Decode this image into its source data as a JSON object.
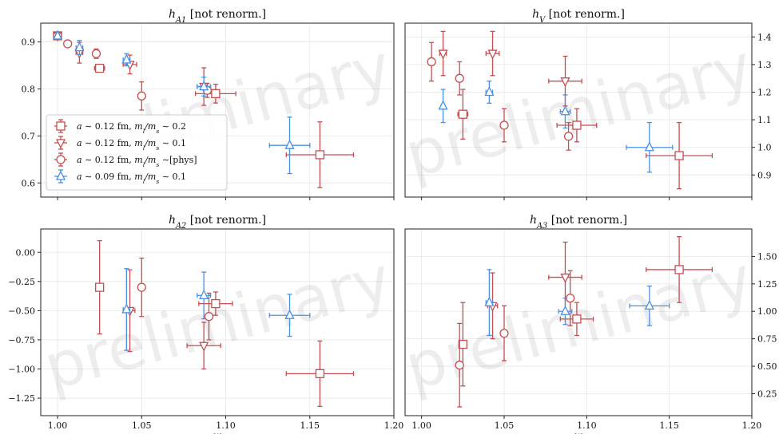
{
  "colors": {
    "red": "#c44e52",
    "blue": "#4a90e2",
    "grid": "#e6e6e6",
    "axis": "#222222"
  },
  "watermark": "preliminary",
  "xlabel": "w",
  "legend": {
    "entries": [
      {
        "series": "a012_02",
        "text": "a ∼ 0.12 fm, m_l/m_s ∼ 0.2"
      },
      {
        "series": "a012_01",
        "text": "a ∼ 0.12 fm, m_l/m_s ∼ 0.1"
      },
      {
        "series": "a012_phys",
        "text": "a ∼ 0.12 fm, m_l/m_s ∼[phys]"
      },
      {
        "series": "a009_01",
        "text": "a ∼ 0.09 fm, m_l/m_s ∼ 0.1"
      }
    ]
  },
  "chart_data": [
    {
      "type": "scatter",
      "title": "h_A1 [not renorm.]",
      "xlabel": "",
      "xlim": [
        0.99,
        1.2
      ],
      "ylim": [
        0.57,
        0.94
      ],
      "xticks": [],
      "yticks": [
        0.6,
        0.7,
        0.8,
        0.9
      ],
      "ytick_labels": [
        "0.6",
        "0.7",
        "0.8",
        "0.9"
      ],
      "ytick_side": "left",
      "grid": true,
      "series": [
        {
          "key": "a012_02",
          "marker": "square",
          "color": "red",
          "points": [
            {
              "x": 1.0,
              "y": 0.913,
              "xerr": 0.002,
              "yerr": 0.006
            },
            {
              "x": 1.025,
              "y": 0.844,
              "xerr": 0.003,
              "yerr": 0.008
            },
            {
              "x": 1.094,
              "y": 0.79,
              "xerr": 0.012,
              "yerr": 0.02
            },
            {
              "x": 1.156,
              "y": 0.66,
              "xerr": 0.02,
              "yerr": 0.07
            }
          ]
        },
        {
          "key": "a012_01",
          "marker": "triangle-down",
          "color": "red",
          "points": [
            {
              "x": 1.0,
              "y": 0.913,
              "xerr": 0.001,
              "yerr": 0.007
            },
            {
              "x": 1.013,
              "y": 0.877,
              "xerr": 0.002,
              "yerr": 0.022
            },
            {
              "x": 1.043,
              "y": 0.852,
              "xerr": 0.004,
              "yerr": 0.02
            },
            {
              "x": 1.087,
              "y": 0.805,
              "xerr": 0.004,
              "yerr": 0.04
            }
          ]
        },
        {
          "key": "a012_phys",
          "marker": "circle",
          "color": "red",
          "points": [
            {
              "x": 1.0,
              "y": 0.913,
              "xerr": 0.001,
              "yerr": 0.006
            },
            {
              "x": 1.006,
              "y": 0.896,
              "xerr": 0.001,
              "yerr": 0.005
            },
            {
              "x": 1.023,
              "y": 0.875,
              "xerr": 0.001,
              "yerr": 0.01
            },
            {
              "x": 1.05,
              "y": 0.785,
              "xerr": 0.001,
              "yerr": 0.03
            },
            {
              "x": 1.089,
              "y": 0.797,
              "xerr": 0.001,
              "yerr": 0.015
            }
          ]
        },
        {
          "key": "a009_01",
          "marker": "triangle-up",
          "color": "blue",
          "points": [
            {
              "x": 1.0,
              "y": 0.913,
              "xerr": 0.001,
              "yerr": 0.006
            },
            {
              "x": 1.013,
              "y": 0.888,
              "xerr": 0.002,
              "yerr": 0.015
            },
            {
              "x": 1.041,
              "y": 0.862,
              "xerr": 0.002,
              "yerr": 0.013
            },
            {
              "x": 1.087,
              "y": 0.805,
              "xerr": 0.004,
              "yerr": 0.02
            },
            {
              "x": 1.138,
              "y": 0.68,
              "xerr": 0.012,
              "yerr": 0.06
            }
          ]
        }
      ]
    },
    {
      "type": "scatter",
      "title": "h_V [not renorm.]",
      "xlabel": "",
      "xlim": [
        0.99,
        1.2
      ],
      "ylim": [
        0.82,
        1.45
      ],
      "xticks": [],
      "yticks": [
        0.9,
        1.0,
        1.1,
        1.2,
        1.3,
        1.4
      ],
      "ytick_labels": [
        "0.9",
        "1.0",
        "1.1",
        "1.2",
        "1.3",
        "1.4"
      ],
      "ytick_side": "right",
      "grid": true,
      "series": [
        {
          "key": "a012_02",
          "marker": "square",
          "color": "red",
          "points": [
            {
              "x": 1.025,
              "y": 1.12,
              "xerr": 0.003,
              "yerr": 0.09
            },
            {
              "x": 1.094,
              "y": 1.08,
              "xerr": 0.012,
              "yerr": 0.06
            },
            {
              "x": 1.156,
              "y": 0.97,
              "xerr": 0.02,
              "yerr": 0.12
            }
          ]
        },
        {
          "key": "a012_01",
          "marker": "triangle-down",
          "color": "red",
          "points": [
            {
              "x": 1.013,
              "y": 1.34,
              "xerr": 0.002,
              "yerr": 0.08
            },
            {
              "x": 1.043,
              "y": 1.34,
              "xerr": 0.004,
              "yerr": 0.08
            },
            {
              "x": 1.087,
              "y": 1.24,
              "xerr": 0.01,
              "yerr": 0.09
            }
          ]
        },
        {
          "key": "a012_phys",
          "marker": "circle",
          "color": "red",
          "points": [
            {
              "x": 1.006,
              "y": 1.31,
              "xerr": 0.001,
              "yerr": 0.07
            },
            {
              "x": 1.023,
              "y": 1.25,
              "xerr": 0.001,
              "yerr": 0.06
            },
            {
              "x": 1.05,
              "y": 1.08,
              "xerr": 0.001,
              "yerr": 0.06
            },
            {
              "x": 1.089,
              "y": 1.04,
              "xerr": 0.001,
              "yerr": 0.05
            }
          ]
        },
        {
          "key": "a009_01",
          "marker": "triangle-up",
          "color": "blue",
          "points": [
            {
              "x": 1.013,
              "y": 1.15,
              "xerr": 0.001,
              "yerr": 0.06
            },
            {
              "x": 1.041,
              "y": 1.2,
              "xerr": 0.002,
              "yerr": 0.04
            },
            {
              "x": 1.087,
              "y": 1.13,
              "xerr": 0.003,
              "yerr": 0.06
            },
            {
              "x": 1.138,
              "y": 1.0,
              "xerr": 0.014,
              "yerr": 0.09
            }
          ]
        }
      ]
    },
    {
      "type": "scatter",
      "title": "h_A2 [not renorm.]",
      "xlabel": "w",
      "xlim": [
        0.99,
        1.2
      ],
      "ylim": [
        -1.4,
        0.2
      ],
      "xticks": [
        1.0,
        1.05,
        1.1,
        1.15,
        1.2
      ],
      "xtick_labels": [
        "1.00",
        "1.05",
        "1.10",
        "1.15",
        "1.20"
      ],
      "yticks": [
        -1.25,
        -1.0,
        -0.75,
        -0.5,
        -0.25,
        0.0
      ],
      "ytick_labels": [
        "−1.25",
        "−1.00",
        "−0.75",
        "−0.50",
        "−0.25",
        "0.00"
      ],
      "ytick_side": "left",
      "grid": true,
      "series": [
        {
          "key": "a012_02",
          "marker": "square",
          "color": "red",
          "points": [
            {
              "x": 1.025,
              "y": -0.3,
              "xerr": 0.002,
              "yerr": 0.4
            },
            {
              "x": 1.094,
              "y": -0.44,
              "xerr": 0.01,
              "yerr": 0.1
            },
            {
              "x": 1.156,
              "y": -1.04,
              "xerr": 0.02,
              "yerr": 0.28
            }
          ]
        },
        {
          "key": "a012_01",
          "marker": "triangle-down",
          "color": "red",
          "points": [
            {
              "x": 1.043,
              "y": -0.5,
              "xerr": 0.003,
              "yerr": 0.35
            },
            {
              "x": 1.087,
              "y": -0.8,
              "xerr": 0.01,
              "yerr": 0.2
            }
          ]
        },
        {
          "key": "a012_phys",
          "marker": "circle",
          "color": "red",
          "points": [
            {
              "x": 1.05,
              "y": -0.3,
              "xerr": 0.001,
              "yerr": 0.25
            },
            {
              "x": 1.09,
              "y": -0.55,
              "xerr": 0.001,
              "yerr": 0.2
            }
          ]
        },
        {
          "key": "a009_01",
          "marker": "triangle-up",
          "color": "blue",
          "points": [
            {
              "x": 1.041,
              "y": -0.49,
              "xerr": 0.002,
              "yerr": 0.35
            },
            {
              "x": 1.087,
              "y": -0.37,
              "xerr": 0.004,
              "yerr": 0.2
            },
            {
              "x": 1.138,
              "y": -0.54,
              "xerr": 0.012,
              "yerr": 0.18
            }
          ]
        }
      ]
    },
    {
      "type": "scatter",
      "title": "h_A3 [not renorm.]",
      "xlabel": "w",
      "xlim": [
        0.99,
        1.2
      ],
      "ylim": [
        0.05,
        1.75
      ],
      "xticks": [
        1.0,
        1.05,
        1.1,
        1.15,
        1.2
      ],
      "xtick_labels": [
        "1.00",
        "1.05",
        "1.10",
        "1.15",
        "1.20"
      ],
      "yticks": [
        0.25,
        0.5,
        0.75,
        1.0,
        1.25,
        1.5
      ],
      "ytick_labels": [
        "0.25",
        "0.50",
        "0.75",
        "1.00",
        "1.25",
        "1.50"
      ],
      "ytick_side": "right",
      "grid": true,
      "series": [
        {
          "key": "a012_02",
          "marker": "square",
          "color": "red",
          "points": [
            {
              "x": 1.025,
              "y": 0.7,
              "xerr": 0.002,
              "yerr": 0.38
            },
            {
              "x": 1.094,
              "y": 0.93,
              "xerr": 0.01,
              "yerr": 0.15
            },
            {
              "x": 1.156,
              "y": 1.38,
              "xerr": 0.02,
              "yerr": 0.3
            }
          ]
        },
        {
          "key": "a012_01",
          "marker": "triangle-down",
          "color": "red",
          "points": [
            {
              "x": 1.043,
              "y": 1.05,
              "xerr": 0.003,
              "yerr": 0.3
            },
            {
              "x": 1.087,
              "y": 1.31,
              "xerr": 0.01,
              "yerr": 0.32
            }
          ]
        },
        {
          "key": "a012_phys",
          "marker": "circle",
          "color": "red",
          "points": [
            {
              "x": 1.023,
              "y": 0.51,
              "xerr": 0.001,
              "yerr": 0.38
            },
            {
              "x": 1.05,
              "y": 0.8,
              "xerr": 0.001,
              "yerr": 0.25
            },
            {
              "x": 1.09,
              "y": 1.12,
              "xerr": 0.001,
              "yerr": 0.25
            }
          ]
        },
        {
          "key": "a009_01",
          "marker": "triangle-up",
          "color": "blue",
          "points": [
            {
              "x": 1.041,
              "y": 1.08,
              "xerr": 0.002,
              "yerr": 0.3
            },
            {
              "x": 1.087,
              "y": 1.0,
              "xerr": 0.004,
              "yerr": 0.12
            },
            {
              "x": 1.138,
              "y": 1.05,
              "xerr": 0.012,
              "yerr": 0.18
            }
          ]
        }
      ]
    }
  ]
}
